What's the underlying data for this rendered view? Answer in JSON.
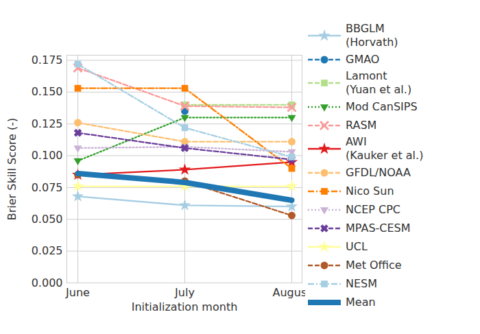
{
  "chart_data": {
    "type": "line",
    "x_label": "Initialization month",
    "y_label": "Brier Skill Score (-)",
    "categories": [
      "June",
      "July",
      "August"
    ],
    "ylim": [
      0,
      0.179
    ],
    "yticks": [
      {
        "value": 0,
        "label": "0.000"
      },
      0.025,
      {
        "value": 0.05,
        "label": "0.050"
      },
      0.075,
      {
        "value": 0.1,
        "label": "0.100"
      },
      0.125,
      {
        "value": 0.15,
        "label": "0.150"
      },
      0.175
    ],
    "grid": true,
    "legend": "right",
    "series": [
      {
        "name": "BBGLM (Horvath)",
        "color": "#a6cee3",
        "marker": "star",
        "line_style": "solid",
        "values": [
          0.068,
          0.061,
          0.06
        ]
      },
      {
        "name": "GMAO",
        "color": "#1f78b4",
        "marker": "circle",
        "line_style": "dashed",
        "values": [
          null,
          0.135,
          null
        ]
      },
      {
        "name": "Lamont (Yuan et al.)",
        "color": "#b2df8a",
        "marker": "square",
        "line_style": "dashed",
        "values": [
          null,
          0.14,
          0.14
        ]
      },
      {
        "name": "Mod CanSIPS",
        "color": "#33a02c",
        "marker": "triangle_down",
        "line_style": "dotted",
        "values": [
          0.096,
          0.13,
          0.13
        ]
      },
      {
        "name": "RASM",
        "color": "#fb9a99",
        "marker": "x",
        "line_style": "dashed",
        "values": [
          0.169,
          0.139,
          0.138
        ]
      },
      {
        "name": "AWI (Kauker et al.)",
        "color": "#e31a1c",
        "marker": "star",
        "line_style": "solid",
        "values": [
          0.085,
          0.089,
          0.095
        ]
      },
      {
        "name": "GFDL/NOAA",
        "color": "#fdbf6f",
        "marker": "circle",
        "line_style": "dashed",
        "values": [
          0.126,
          0.111,
          0.111
        ]
      },
      {
        "name": "Nico Sun",
        "color": "#ff7f00",
        "marker": "square",
        "line_style": "dashdot",
        "values": [
          0.153,
          0.153,
          0.09
        ]
      },
      {
        "name": "NCEP CPC",
        "color": "#cab2d6",
        "marker": "triangle_down",
        "line_style": "dotted",
        "values": [
          0.106,
          0.107,
          0.103
        ]
      },
      {
        "name": "MPAS-CESM",
        "color": "#6a3d9a",
        "marker": "X",
        "line_style": "dashed",
        "values": [
          0.118,
          0.106,
          0.097
        ]
      },
      {
        "name": "UCL",
        "color": "#ffff99",
        "marker": "star",
        "line_style": "solid",
        "values": [
          0.076,
          0.076,
          0.076
        ]
      },
      {
        "name": "Met Office",
        "color": "#b15928",
        "marker": "circle",
        "line_style": "dashed",
        "values": [
          0.085,
          0.08,
          0.053
        ]
      },
      {
        "name": "NESM",
        "color": "#a6cee3",
        "marker": "square",
        "line_style": "dashdot",
        "values": [
          0.172,
          0.122,
          0.099
        ]
      },
      {
        "name": "Mean",
        "color": "#1f77b4",
        "marker": "none",
        "line_style": "solid",
        "values": [
          0.086,
          0.079,
          0.065
        ]
      }
    ]
  }
}
